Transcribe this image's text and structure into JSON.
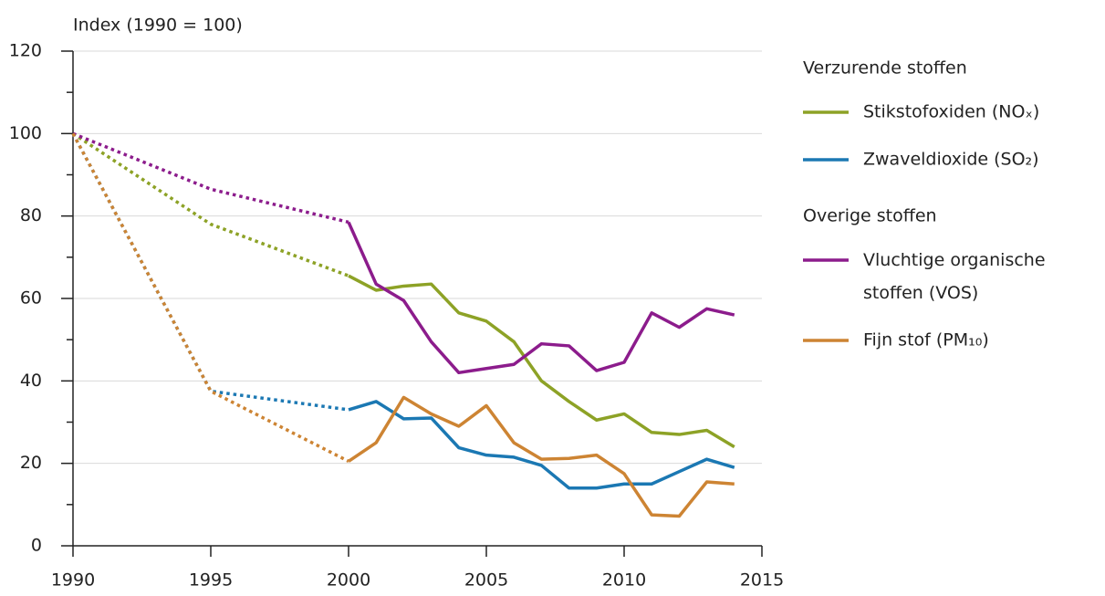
{
  "chart_data": {
    "type": "line",
    "y_label": "Index (1990 = 100)",
    "x": [
      1990,
      1995,
      2000,
      2001,
      2002,
      2003,
      2004,
      2005,
      2006,
      2007,
      2008,
      2009,
      2010,
      2011,
      2012,
      2013,
      2014
    ],
    "dotted_before": 2000,
    "legend_groups": [
      "Verzurende stoffen",
      "Overige stoffen"
    ],
    "series": [
      {
        "name": "Stikstofoxiden (NOₓ)",
        "color": "#8da226",
        "group": 0,
        "values": [
          100,
          78,
          65.5,
          62,
          63,
          63.5,
          56.5,
          54.5,
          49.5,
          40,
          35,
          30.5,
          32,
          27.5,
          27,
          28,
          24
        ]
      },
      {
        "name": "Zwaveldioxide (SO₂)",
        "color": "#1b78b3",
        "group": 0,
        "values": [
          100,
          37.5,
          33,
          35,
          30.8,
          31,
          23.8,
          22,
          21.5,
          19.5,
          14,
          14,
          15,
          15,
          18,
          21,
          19
        ]
      },
      {
        "name": "Vluchtige organische stoffen (VOS)",
        "color": "#8c1c8c",
        "group": 1,
        "values": [
          100,
          86.5,
          78.5,
          63.5,
          59.5,
          49.5,
          42,
          43,
          44,
          49,
          48.5,
          42.5,
          44.5,
          56.5,
          53,
          57.5,
          56
        ]
      },
      {
        "name": "Fijn stof (PM₁₀)",
        "color": "#cd8433",
        "group": 1,
        "values": [
          100,
          37.5,
          20.5,
          25,
          36,
          32,
          29,
          34,
          25,
          21,
          21.2,
          22,
          17.5,
          7.5,
          7.2,
          15.5,
          15
        ]
      }
    ],
    "xlim": [
      1990,
      2015
    ],
    "xticks": [
      1990,
      1995,
      2000,
      2005,
      2010,
      2015
    ],
    "ylim": [
      0,
      120
    ],
    "yticks": [
      0,
      20,
      40,
      60,
      80,
      100,
      120
    ],
    "yminor_ticks": [
      10,
      30,
      50,
      70,
      90,
      110
    ],
    "grid": true
  }
}
